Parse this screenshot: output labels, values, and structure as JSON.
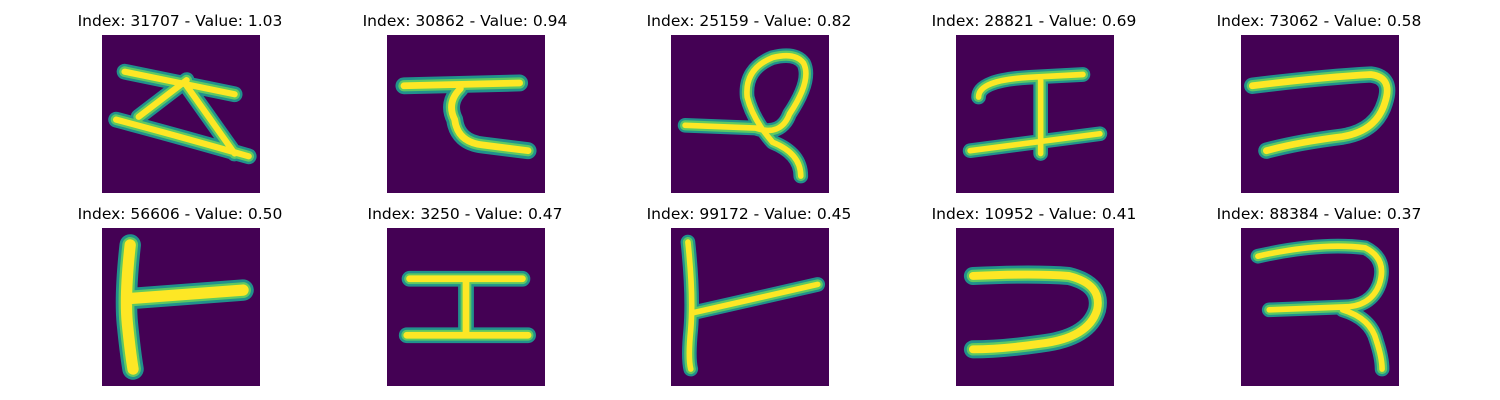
{
  "figure": {
    "panels": [
      {
        "title": "Index: 31707 - Value: 1.03",
        "image_desc": "handwritten glyph resembling a slanted Z / 'N' with zig-zag diagonal strokes"
      },
      {
        "title": "Index: 30862 - Value: 0.94",
        "image_desc": "glyph with top horizontal bar and a hook descending to a bottom-right stroke"
      },
      {
        "title": "Index: 25159 - Value: 0.82",
        "image_desc": "glyph with a left horizontal stroke joining a loop that descends on the right"
      },
      {
        "title": "Index: 28821 - Value: 0.69",
        "image_desc": "glyph with two horizontal bars joined by a vertical stem"
      },
      {
        "title": "Index: 73062 - Value: 0.58",
        "image_desc": "glyph resembling a reversed C / open loop to the right"
      },
      {
        "title": "Index: 56606 - Value: 0.50",
        "image_desc": "thick glyph shaped like a T rotated on its side"
      },
      {
        "title": "Index: 3250 - Value: 0.47",
        "image_desc": "I-beam shaped glyph with two horizontal bars and a short vertical stem"
      },
      {
        "title": "Index: 99172 - Value: 0.45",
        "image_desc": "glyph with a tall left vertical stroke and a diagonal branching to the right"
      },
      {
        "title": "Index: 10952 - Value: 0.41",
        "image_desc": "glyph resembling a right-facing U / reversed C"
      },
      {
        "title": "Index: 88384 - Value: 0.37",
        "image_desc": "glyph resembling a reversed R"
      }
    ]
  },
  "colors": {
    "background": "#440154",
    "stroke_outer": "#21918c",
    "stroke_mid": "#5ec962",
    "stroke_core": "#fde725",
    "title_text": "#000000"
  }
}
